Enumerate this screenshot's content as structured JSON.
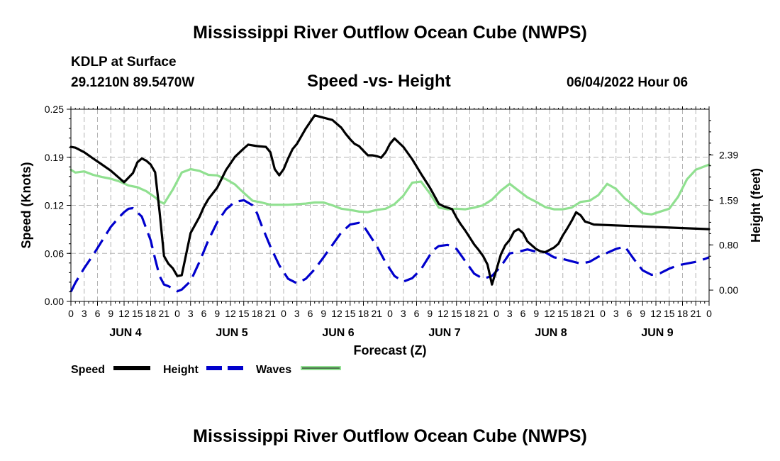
{
  "page": {
    "title_top": "Mississippi River Outflow Ocean Cube (NWPS)",
    "title_bottom": "Mississippi River Outflow Ocean Cube (NWPS)",
    "station": "KDLP at Surface",
    "coords": "29.1210N  89.5470W",
    "datetime": "06/04/2022 Hour 06"
  },
  "chart_data": {
    "type": "line",
    "title": "Speed -vs- Height",
    "xlabel": "Forecast (Z)",
    "ylabel_left": "Speed (Knots)",
    "ylabel_right": "Height (feet)",
    "x_range": [
      0,
      144
    ],
    "ylim_left": [
      0,
      0.25
    ],
    "ylim_right": [
      -0.2,
      3.2
    ],
    "left_ticks": [
      {
        "v": 0,
        "label": "0.00"
      },
      {
        "v": 0.0625,
        "label": "0.06"
      },
      {
        "v": 0.125,
        "label": "0.12"
      },
      {
        "v": 0.1875,
        "label": "0.19"
      },
      {
        "v": 0.25,
        "label": "0.25"
      }
    ],
    "right_ticks": [
      {
        "v": 0,
        "label": "0.00"
      },
      {
        "v": 0.8,
        "label": "0.80"
      },
      {
        "v": 1.59,
        "label": "1.59"
      },
      {
        "v": 2.39,
        "label": "2.39"
      }
    ],
    "x_tick_labels": [
      "0",
      "3",
      "6",
      "9",
      "12",
      "15",
      "18",
      "21",
      "0",
      "3",
      "6",
      "9",
      "12",
      "15",
      "18",
      "21",
      "0",
      "3",
      "6",
      "9",
      "12",
      "15",
      "18",
      "21",
      "0",
      "3",
      "6",
      "9",
      "12",
      "15",
      "18",
      "21",
      "0",
      "3",
      "6",
      "9",
      "12",
      "15",
      "18",
      "21",
      "0",
      "3",
      "6",
      "9",
      "12",
      "15",
      "18",
      "21",
      "0"
    ],
    "day_labels": [
      {
        "x": 12,
        "label": "JUN 4"
      },
      {
        "x": 36,
        "label": "JUN 5"
      },
      {
        "x": 60,
        "label": "JUN 6"
      },
      {
        "x": 84,
        "label": "JUN 7"
      },
      {
        "x": 108,
        "label": "JUN 8"
      },
      {
        "x": 132,
        "label": "JUN 9"
      }
    ],
    "legend": [
      {
        "name": "Speed",
        "color": "#000000",
        "style": "solid"
      },
      {
        "name": "Height",
        "color": "#0000cc",
        "style": "dashed"
      },
      {
        "name": "Waves",
        "color": "#90e090",
        "style": "solid"
      }
    ],
    "series": [
      {
        "name": "Speed",
        "axis": "left",
        "color": "#000000",
        "x": [
          0,
          1,
          3,
          5,
          7,
          9,
          11,
          12,
          14,
          15,
          16,
          17,
          18,
          19,
          20,
          21,
          22,
          23,
          24,
          25,
          27,
          29,
          30,
          31,
          33,
          35,
          37,
          39,
          40,
          42,
          44,
          45,
          46,
          47,
          48,
          49,
          50,
          51,
          53,
          55,
          57,
          59,
          61,
          62,
          63,
          64,
          65,
          66,
          67,
          68,
          69,
          70,
          71,
          72,
          73,
          75,
          77,
          79,
          81,
          83,
          84,
          85,
          86,
          87,
          88,
          89,
          90,
          91,
          92,
          93,
          94,
          95,
          96,
          97,
          98,
          99,
          100,
          101,
          102,
          103,
          104,
          105,
          106,
          107,
          108,
          109,
          110,
          111,
          112,
          113,
          114,
          115,
          116,
          117,
          118,
          144
        ],
        "values": [
          0.201,
          0.2,
          0.194,
          0.186,
          0.178,
          0.17,
          0.16,
          0.155,
          0.167,
          0.181,
          0.186,
          0.183,
          0.178,
          0.168,
          0.117,
          0.059,
          0.049,
          0.043,
          0.033,
          0.034,
          0.089,
          0.11,
          0.123,
          0.133,
          0.148,
          0.171,
          0.188,
          0.199,
          0.204,
          0.202,
          0.201,
          0.194,
          0.172,
          0.164,
          0.172,
          0.186,
          0.198,
          0.205,
          0.225,
          0.242,
          0.239,
          0.236,
          0.226,
          0.218,
          0.211,
          0.205,
          0.202,
          0.196,
          0.19,
          0.19,
          0.189,
          0.187,
          0.194,
          0.205,
          0.212,
          0.201,
          0.185,
          0.166,
          0.148,
          0.127,
          0.124,
          0.122,
          0.12,
          0.109,
          0.1,
          0.092,
          0.083,
          0.074,
          0.067,
          0.059,
          0.048,
          0.022,
          0.041,
          0.061,
          0.073,
          0.08,
          0.091,
          0.094,
          0.089,
          0.078,
          0.073,
          0.068,
          0.065,
          0.064,
          0.067,
          0.07,
          0.075,
          0.086,
          0.095,
          0.105,
          0.116,
          0.112,
          0.104,
          0.102,
          0.1,
          0.094
        ]
      },
      {
        "name": "Height",
        "axis": "right",
        "color": "#0000cc",
        "dash": "22 10",
        "x": [
          0,
          1,
          3,
          5,
          7,
          9,
          11,
          12,
          13,
          14,
          16,
          18,
          19,
          20,
          21,
          22,
          23,
          24,
          25,
          27,
          29,
          31,
          33,
          35,
          37,
          39,
          41,
          42,
          43,
          45,
          47,
          49,
          51,
          53,
          55,
          57,
          59,
          61,
          63,
          65,
          66,
          67,
          69,
          71,
          73,
          75,
          77,
          79,
          81,
          82,
          83,
          85,
          87,
          89,
          91,
          93,
          95,
          97,
          99,
          101,
          103,
          105,
          107,
          109,
          111,
          113,
          115,
          117,
          119,
          121,
          123,
          125,
          127,
          129,
          131,
          133,
          135,
          137,
          139,
          141,
          143,
          144
        ],
        "values": [
          -0.03,
          0.13,
          0.39,
          0.62,
          0.87,
          1.12,
          1.3,
          1.38,
          1.44,
          1.45,
          1.3,
          0.88,
          0.55,
          0.25,
          0.1,
          0.07,
          0.03,
          -0.02,
          0.01,
          0.16,
          0.5,
          0.88,
          1.2,
          1.43,
          1.56,
          1.59,
          1.5,
          1.36,
          1.15,
          0.77,
          0.44,
          0.2,
          0.12,
          0.2,
          0.37,
          0.58,
          0.8,
          1.02,
          1.16,
          1.19,
          1.14,
          1.02,
          0.78,
          0.49,
          0.25,
          0.15,
          0.21,
          0.37,
          0.62,
          0.72,
          0.78,
          0.8,
          0.73,
          0.51,
          0.29,
          0.2,
          0.25,
          0.42,
          0.65,
          0.68,
          0.72,
          0.68,
          0.67,
          0.58,
          0.55,
          0.51,
          0.47,
          0.5,
          0.59,
          0.66,
          0.73,
          0.77,
          0.55,
          0.35,
          0.27,
          0.3,
          0.38,
          0.44,
          0.47,
          0.5,
          0.55,
          0.58
        ]
      },
      {
        "name": "Waves",
        "axis": "right",
        "color": "#90e090",
        "x": [
          0,
          1,
          3,
          5,
          7,
          9,
          11,
          13,
          15,
          17,
          19,
          20,
          21,
          23,
          25,
          27,
          29,
          31,
          33,
          35,
          37,
          39,
          41,
          43,
          45,
          47,
          49,
          51,
          53,
          55,
          57,
          59,
          61,
          63,
          65,
          67,
          69,
          71,
          73,
          75,
          77,
          79,
          81,
          83,
          85,
          87,
          89,
          91,
          93,
          95,
          97,
          99,
          101,
          103,
          105,
          107,
          109,
          111,
          113,
          115,
          117,
          119,
          121,
          123,
          125,
          127,
          129,
          131,
          133,
          135,
          137,
          139,
          141,
          143,
          144
        ],
        "values": [
          2.13,
          2.08,
          2.1,
          2.04,
          2.0,
          1.97,
          1.92,
          1.85,
          1.82,
          1.75,
          1.64,
          1.57,
          1.53,
          1.78,
          2.08,
          2.14,
          2.11,
          2.04,
          2.03,
          1.96,
          1.87,
          1.72,
          1.58,
          1.55,
          1.51,
          1.51,
          1.51,
          1.52,
          1.53,
          1.55,
          1.55,
          1.5,
          1.44,
          1.42,
          1.39,
          1.38,
          1.42,
          1.44,
          1.52,
          1.67,
          1.9,
          1.92,
          1.71,
          1.46,
          1.43,
          1.44,
          1.43,
          1.46,
          1.5,
          1.6,
          1.76,
          1.88,
          1.76,
          1.64,
          1.56,
          1.47,
          1.43,
          1.43,
          1.46,
          1.56,
          1.58,
          1.68,
          1.88,
          1.79,
          1.62,
          1.5,
          1.36,
          1.34,
          1.39,
          1.44,
          1.65,
          1.96,
          2.13,
          2.19,
          2.22
        ]
      }
    ]
  }
}
